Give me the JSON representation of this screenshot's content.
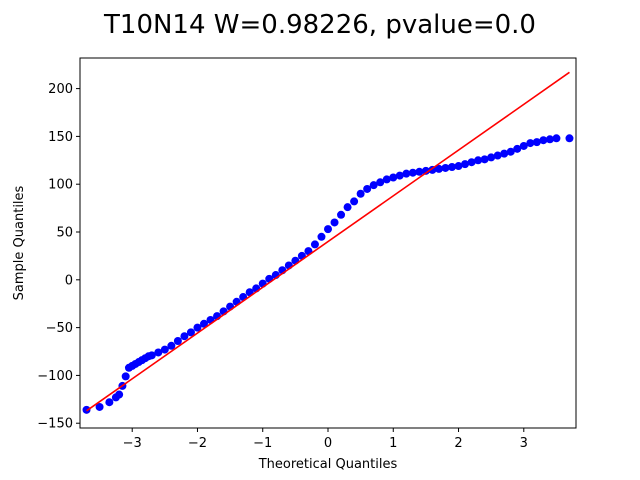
{
  "chart_data": {
    "type": "scatter",
    "title": "T10N14 W=0.98226, pvalue=0.0",
    "xlabel": "Theoretical Quantiles",
    "ylabel": "Sample Quantiles",
    "xlim": [
      -3.8,
      3.8
    ],
    "ylim": [
      -155,
      232
    ],
    "xticks": [
      -3,
      -2,
      -1,
      0,
      1,
      2,
      3
    ],
    "yticks": [
      -150,
      -100,
      -50,
      0,
      50,
      100,
      150,
      200
    ],
    "xtick_labels": [
      "−3",
      "−2",
      "−1",
      "0",
      "1",
      "2",
      "3"
    ],
    "ytick_labels": [
      "−150",
      "−100",
      "−50",
      "0",
      "50",
      "100",
      "150",
      "200"
    ],
    "grid": false,
    "marker_color": "#0000ff",
    "line_color": "#ff0000",
    "reference_line": {
      "x": [
        -3.7,
        3.7
      ],
      "y": [
        -137,
        217
      ]
    },
    "sample_points": {
      "x": [
        -3.7,
        -3.5,
        -3.35,
        -3.25,
        -3.2,
        -3.15,
        -3.1,
        -3.05,
        -3.0,
        -2.95,
        -2.9,
        -2.85,
        -2.8,
        -2.75,
        -2.7,
        -2.6,
        -2.5,
        -2.4,
        -2.3,
        -2.2,
        -2.1,
        -2.0,
        -1.9,
        -1.8,
        -1.7,
        -1.6,
        -1.5,
        -1.4,
        -1.3,
        -1.2,
        -1.1,
        -1.0,
        -0.9,
        -0.8,
        -0.7,
        -0.6,
        -0.5,
        -0.4,
        -0.3,
        -0.2,
        -0.1,
        0.0,
        0.1,
        0.2,
        0.3,
        0.4,
        0.5,
        0.6,
        0.7,
        0.8,
        0.9,
        1.0,
        1.1,
        1.2,
        1.3,
        1.4,
        1.5,
        1.6,
        1.7,
        1.8,
        1.9,
        2.0,
        2.1,
        2.2,
        2.3,
        2.4,
        2.5,
        2.6,
        2.7,
        2.8,
        2.9,
        3.0,
        3.1,
        3.2,
        3.3,
        3.4,
        3.5,
        3.7
      ],
      "y": [
        -136,
        -133,
        -128,
        -123,
        -120,
        -111,
        -101,
        -92,
        -90,
        -88,
        -86,
        -84,
        -82,
        -80,
        -79,
        -76,
        -73,
        -69,
        -64,
        -59,
        -55,
        -50,
        -46,
        -42,
        -38,
        -33,
        -28,
        -23,
        -18,
        -13,
        -9,
        -4,
        1,
        5,
        10,
        15,
        20,
        25,
        30,
        37,
        45,
        53,
        60,
        68,
        76,
        82,
        90,
        95,
        99,
        102,
        105,
        107,
        109,
        111,
        112,
        113,
        114,
        115,
        116,
        117,
        118,
        119,
        121,
        123,
        125,
        126,
        128,
        130,
        132,
        134,
        137,
        140,
        143,
        144,
        146,
        147,
        148,
        148
      ]
    }
  }
}
